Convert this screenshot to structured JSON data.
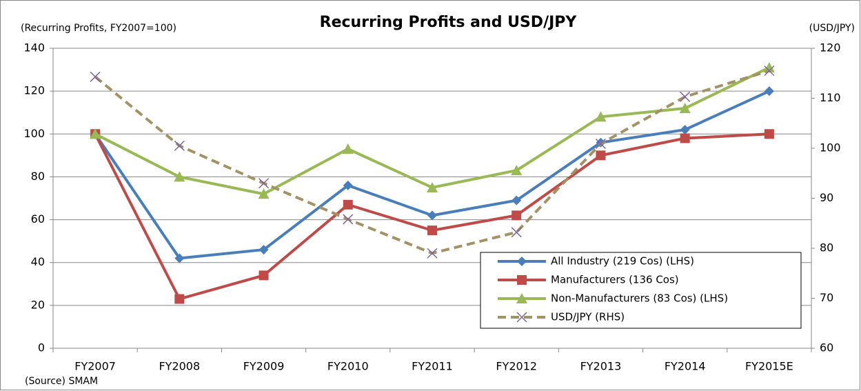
{
  "chart_data": {
    "type": "line",
    "title": "Recurring Profits and USD/JPY",
    "y_label": "(Recurring Profits, FY2007=100)",
    "y2_label": "(USD/JPY)",
    "source": "(Source) SMAM",
    "categories": [
      "FY2007",
      "FY2008",
      "FY2009",
      "FY2010",
      "FY2011",
      "FY2012",
      "FY2013",
      "FY2014",
      "FY2015E"
    ],
    "series": [
      {
        "name": "All Industry (219 Cos) (LHS)",
        "color": "#4a7ebb",
        "marker": "diamond",
        "values": [
          100,
          42,
          46,
          76,
          62,
          69,
          96,
          102,
          120
        ]
      },
      {
        "name": "Manufacturers (136 Cos)",
        "color": "#be4b48",
        "marker": "square",
        "values": [
          100,
          23,
          34,
          67,
          55,
          62,
          90,
          98,
          100
        ]
      },
      {
        "name": "Non-Manufacturers (83 Cos) (LHS)",
        "color": "#98b954",
        "marker": "triangle",
        "values": [
          100,
          80,
          72,
          93,
          75,
          83,
          108,
          112,
          131
        ]
      },
      {
        "name": "USD/JPY (RHS)",
        "color": "#a39265",
        "marker": "x",
        "dashed": true,
        "axis": "y2",
        "values": [
          114.3,
          100.5,
          93,
          85.8,
          79,
          83.2,
          100.9,
          110.3,
          115.5
        ]
      }
    ],
    "ylim": [
      0,
      140
    ],
    "yticks": [
      0,
      20,
      40,
      60,
      80,
      100,
      120,
      140
    ],
    "y2lim": [
      60,
      120
    ],
    "y2ticks": [
      60,
      70,
      80,
      90,
      100,
      110,
      120
    ],
    "grid": true,
    "legend": "lower right"
  }
}
